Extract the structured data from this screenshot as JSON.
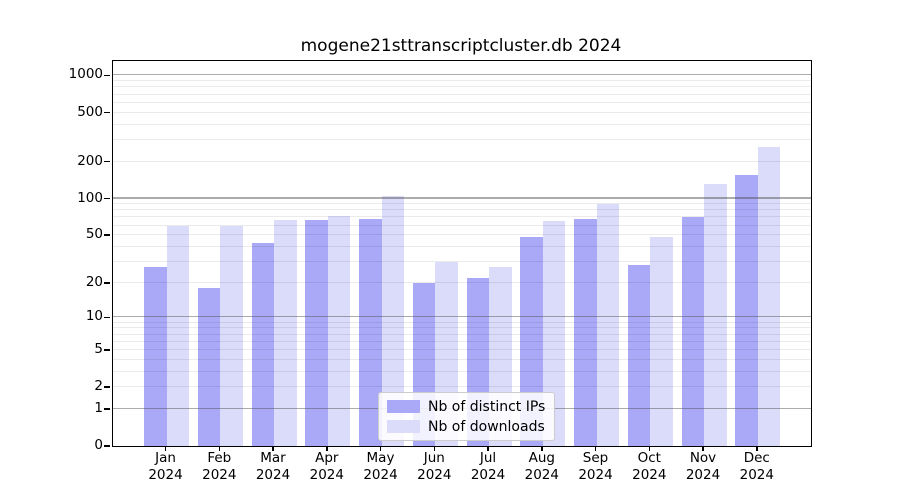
{
  "title": "mogene21sttranscriptcluster.db 2024",
  "chart_data": {
    "type": "bar",
    "title": "mogene21sttranscriptcluster.db 2024",
    "yscale": "log10(1+x)",
    "ylim": [
      0,
      1300
    ],
    "yticks": [
      0,
      1,
      2,
      5,
      10,
      20,
      50,
      100,
      200,
      500,
      1000
    ],
    "grid": "minor lines at 2-9 of each decade, major lines at 1/10/100/1000, drawn above bars",
    "categories": [
      "Jan",
      "Feb",
      "Mar",
      "Apr",
      "May",
      "Jun",
      "Jul",
      "Aug",
      "Sep",
      "Oct",
      "Nov",
      "Dec"
    ],
    "x_year_label": "2024",
    "series": [
      {
        "name": "Nb of distinct IPs",
        "color": "#a9a9f7",
        "values": [
          27,
          18,
          43,
          67,
          68,
          20,
          22,
          48,
          68,
          28,
          70,
          155
        ]
      },
      {
        "name": "Nb of downloads",
        "color": "#dbdbfa",
        "values": [
          59,
          59,
          67,
          72,
          104,
          30,
          27,
          66,
          90,
          48,
          131,
          265
        ]
      }
    ],
    "legend_position": "inside bottom-center"
  }
}
